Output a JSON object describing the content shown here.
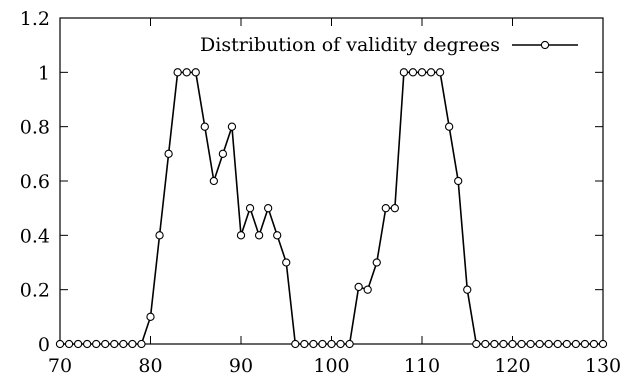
{
  "chart_data": {
    "type": "line",
    "title": "",
    "xlabel": "",
    "ylabel": "",
    "xlim": [
      70,
      130
    ],
    "ylim": [
      0,
      1.2
    ],
    "x_ticks": [
      70,
      80,
      90,
      100,
      110,
      120,
      130
    ],
    "y_ticks": [
      0,
      0.2,
      0.4,
      0.6,
      0.8,
      1,
      1.2
    ],
    "x_tick_labels": [
      "70",
      "80",
      "90",
      "100",
      "110",
      "120",
      "130"
    ],
    "y_tick_labels": [
      "0",
      "0.2",
      "0.4",
      "0.6",
      "0.8",
      "1",
      "1.2"
    ],
    "grid": false,
    "legend_position": "top-right",
    "series": [
      {
        "name": "Distribution of validity degrees",
        "marker": "circle",
        "x": [
          70,
          71,
          72,
          73,
          74,
          75,
          76,
          77,
          78,
          79,
          80,
          81,
          82,
          83,
          84,
          85,
          86,
          87,
          88,
          89,
          90,
          91,
          92,
          93,
          94,
          95,
          96,
          97,
          98,
          99,
          100,
          101,
          102,
          103,
          104,
          105,
          106,
          107,
          108,
          109,
          110,
          111,
          112,
          113,
          114,
          115,
          116,
          117,
          118,
          119,
          120,
          121,
          122,
          123,
          124,
          125,
          126,
          127,
          128,
          129,
          130
        ],
        "y": [
          0,
          0,
          0,
          0,
          0,
          0,
          0,
          0,
          0,
          0,
          0.1,
          0.4,
          0.7,
          1,
          1,
          1,
          0.8,
          0.6,
          0.7,
          0.8,
          0.4,
          0.5,
          0.4,
          0.5,
          0.4,
          0.3,
          0,
          0,
          0,
          0,
          0,
          0,
          0,
          0.21,
          0.2,
          0.3,
          0.5,
          0.5,
          1,
          1,
          1,
          1,
          1,
          0.8,
          0.6,
          0.2,
          0,
          0,
          0,
          0,
          0,
          0,
          0,
          0,
          0,
          0,
          0,
          0,
          0,
          0,
          0
        ]
      }
    ]
  }
}
